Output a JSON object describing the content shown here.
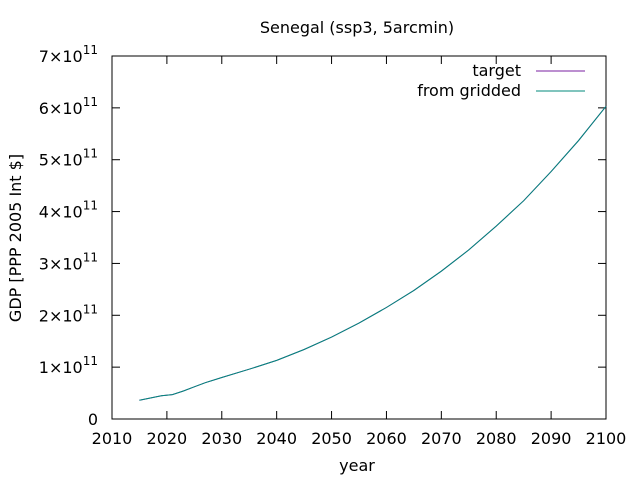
{
  "chart_data": {
    "type": "line",
    "title": "Senegal (ssp3, 5arcmin)",
    "xlabel": "year",
    "ylabel": "GDP [PPP 2005 Int $]",
    "xlim": [
      2010,
      2100
    ],
    "ylim": [
      0,
      700000000000
    ],
    "xticks": [
      "2010",
      "2020",
      "2030",
      "2040",
      "2050",
      "2060",
      "2070",
      "2080",
      "2090",
      "2100"
    ],
    "yticks": [
      {
        "mant": "0",
        "exp": ""
      },
      {
        "mant": "1×10",
        "exp": "11"
      },
      {
        "mant": "2×10",
        "exp": "11"
      },
      {
        "mant": "3×10",
        "exp": "11"
      },
      {
        "mant": "4×10",
        "exp": "11"
      },
      {
        "mant": "5×10",
        "exp": "11"
      },
      {
        "mant": "6×10",
        "exp": "11"
      },
      {
        "mant": "7×10",
        "exp": "11"
      }
    ],
    "ytick_values": [
      0,
      100000000000,
      200000000000,
      300000000000,
      400000000000,
      500000000000,
      600000000000,
      700000000000
    ],
    "grid": false,
    "legend_position": "top-right",
    "x": [
      2015,
      2017,
      2019,
      2021,
      2023,
      2025,
      2027,
      2030,
      2035,
      2040,
      2045,
      2050,
      2055,
      2060,
      2065,
      2070,
      2075,
      2080,
      2085,
      2090,
      2095,
      2100
    ],
    "series": [
      {
        "name": "target",
        "color": "#7a1fa2",
        "values": [
          36000000000,
          40500000000,
          45000000000,
          47000000000,
          54000000000,
          62000000000,
          70000000000,
          80000000000,
          96000000000,
          113000000000,
          134000000000,
          158000000000,
          185000000000,
          215000000000,
          248000000000,
          285000000000,
          326000000000,
          372000000000,
          421000000000,
          477000000000,
          537000000000,
          603000000000
        ]
      },
      {
        "name": "from gridded",
        "color": "#00897b",
        "values": [
          36000000000,
          40500000000,
          45000000000,
          47000000000,
          54000000000,
          62000000000,
          70000000000,
          80000000000,
          96000000000,
          113000000000,
          134000000000,
          158000000000,
          185000000000,
          215000000000,
          248000000000,
          285000000000,
          326000000000,
          372000000000,
          421000000000,
          477000000000,
          537000000000,
          603000000000
        ]
      }
    ]
  }
}
